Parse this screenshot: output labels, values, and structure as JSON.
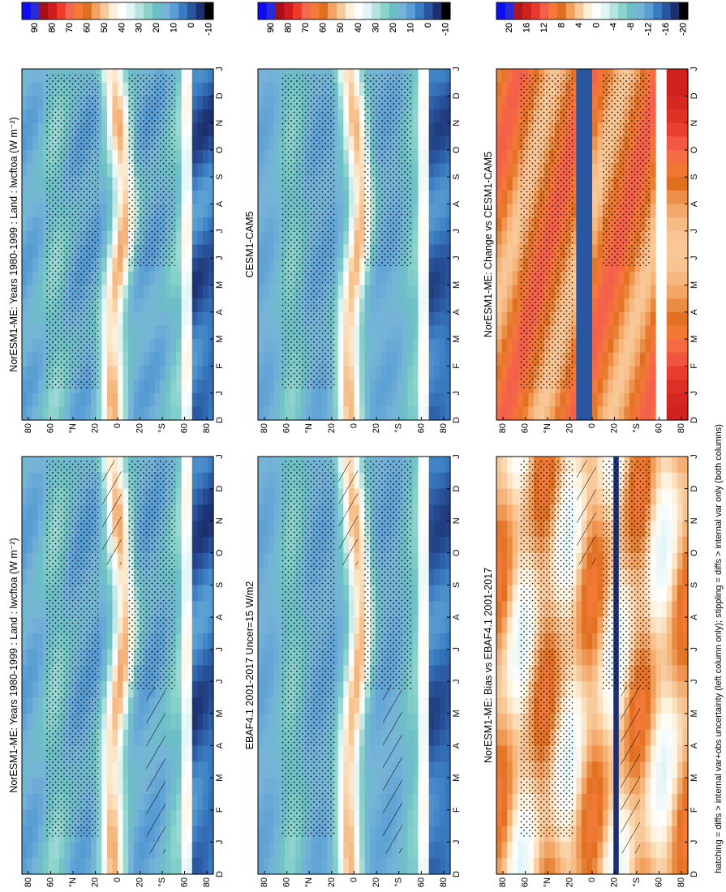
{
  "caption": "hatching = diffs > internal var+obs uncertainty (left column only); stippling = diffs > internal var only (both columns)",
  "lat_ticks": [
    "80",
    "60",
    "°N",
    "20",
    "0",
    "20",
    "°S",
    "60",
    "80"
  ],
  "month_ticks": [
    "D",
    "J",
    "F",
    "M",
    "A",
    "M",
    "J",
    "J",
    "A",
    "S",
    "O",
    "N",
    "D",
    "J"
  ],
  "colors": {
    "abs_scale": [
      "#0c0cf5",
      "#2a2ad8",
      "#a50f15",
      "#d01c1f",
      "#ef3b2c",
      "#f46a50",
      "#f47a36",
      "#e07020",
      "#f3a465",
      "#f8c99a",
      "#fdf0d8",
      "#ffffff",
      "#e2f5f5",
      "#b5e3e0",
      "#8cd2cc",
      "#6cc0c5",
      "#76b3d8",
      "#5a9fd4",
      "#3a7cc2",
      "#2a56a0",
      "#1c2f6e",
      "#000000"
    ],
    "diff_scale": [
      "#0c0cf5",
      "#2a2ad8",
      "#b0171c",
      "#d0211e",
      "#e83a2c",
      "#f4604a",
      "#f57a3a",
      "#e07020",
      "#f2a05e",
      "#f8c898",
      "#fdf0d8",
      "#ffffff",
      "#e2f5f5",
      "#b5e3e0",
      "#8cd2cc",
      "#6cc0c5",
      "#76b3d8",
      "#5a9fd4",
      "#3a7cc2",
      "#2a56a0",
      "#1c2f6e",
      "#000000"
    ]
  },
  "chart_data": [
    {
      "type": "heatmap",
      "title": "NorESM1-ME: Years 1980-1999 : Land : lwcftoa (W m⁻²)",
      "x": [
        "D",
        "J",
        "F",
        "M",
        "A",
        "M",
        "J",
        "J",
        "A",
        "S",
        "O",
        "N",
        "D",
        "J"
      ],
      "y_labels": [
        "80",
        "60",
        "°N",
        "20",
        "0",
        "20",
        "°S",
        "60",
        "80"
      ],
      "colorbar": {
        "labels": [
          "90",
          "80",
          "70",
          "60",
          "50",
          "40",
          "30",
          "20",
          "10",
          "0",
          "-10"
        ],
        "range": [
          -10,
          100
        ]
      },
      "hatching": true,
      "stippling": true
    },
    {
      "type": "heatmap",
      "title": "EBAF4.1 2001-2017 Uncer=15 W/m2",
      "x": [
        "D",
        "J",
        "F",
        "M",
        "A",
        "M",
        "J",
        "J",
        "A",
        "S",
        "O",
        "N",
        "D",
        "J"
      ],
      "y_labels": [
        "80",
        "60",
        "°N",
        "20",
        "0",
        "20",
        "°S",
        "60",
        "80"
      ],
      "colorbar": {
        "labels": [
          "90",
          "80",
          "70",
          "60",
          "50",
          "40",
          "30",
          "20",
          "10",
          "0",
          "-10"
        ],
        "range": [
          -10,
          100
        ]
      },
      "hatching": true,
      "stippling": true
    },
    {
      "type": "heatmap",
      "title": "NorESM1-ME: Bias vs EBAF4.1 2001-2017",
      "x": [
        "D",
        "J",
        "F",
        "M",
        "A",
        "M",
        "J",
        "J",
        "A",
        "S",
        "O",
        "N",
        "D",
        "J"
      ],
      "y_labels": [
        "80",
        "60",
        "°N",
        "20",
        "0",
        "20",
        "°S",
        "60",
        "80"
      ],
      "colorbar": {
        "labels": [
          "20",
          "16",
          "12",
          "8",
          "4",
          "0",
          "-4",
          "-8",
          "-12",
          "-16",
          "-20"
        ],
        "range": [
          -20,
          20
        ]
      },
      "hatching": true,
      "stippling": true
    },
    {
      "type": "heatmap",
      "title": "NorESM1-ME: Years 1980-1999 : Land : lwcftoa (W m⁻²)",
      "x": [
        "D",
        "J",
        "F",
        "M",
        "A",
        "M",
        "J",
        "J",
        "A",
        "S",
        "O",
        "N",
        "D",
        "J"
      ],
      "y_labels": [
        "80",
        "60",
        "°N",
        "20",
        "0",
        "20",
        "°S",
        "60",
        "80"
      ],
      "colorbar": {
        "labels": [
          "90",
          "80",
          "70",
          "60",
          "50",
          "40",
          "30",
          "20",
          "10",
          "0",
          "-10"
        ],
        "range": [
          -10,
          100
        ]
      },
      "hatching": false,
      "stippling": true
    },
    {
      "type": "heatmap",
      "title": "CESM1-CAM5",
      "x": [
        "D",
        "J",
        "F",
        "M",
        "A",
        "M",
        "J",
        "J",
        "A",
        "S",
        "O",
        "N",
        "D",
        "J"
      ],
      "y_labels": [
        "80",
        "60",
        "°N",
        "20",
        "0",
        "20",
        "°S",
        "60",
        "80"
      ],
      "colorbar": {
        "labels": [
          "90",
          "80",
          "70",
          "60",
          "50",
          "40",
          "30",
          "20",
          "10",
          "0",
          "-10"
        ],
        "range": [
          -10,
          100
        ]
      },
      "hatching": false,
      "stippling": true
    },
    {
      "type": "heatmap",
      "title": "NorESM1-ME: Change vs CESM1-CAM5",
      "x": [
        "D",
        "J",
        "F",
        "M",
        "A",
        "M",
        "J",
        "J",
        "A",
        "S",
        "O",
        "N",
        "D",
        "J"
      ],
      "y_labels": [
        "80",
        "60",
        "°N",
        "20",
        "0",
        "20",
        "°S",
        "60",
        "80"
      ],
      "colorbar": {
        "labels": [
          "20",
          "16",
          "12",
          "8",
          "4",
          "0",
          "-4",
          "-8",
          "-12",
          "-16",
          "-20"
        ],
        "range": [
          -20,
          20
        ]
      },
      "hatching": false,
      "stippling": true
    }
  ]
}
